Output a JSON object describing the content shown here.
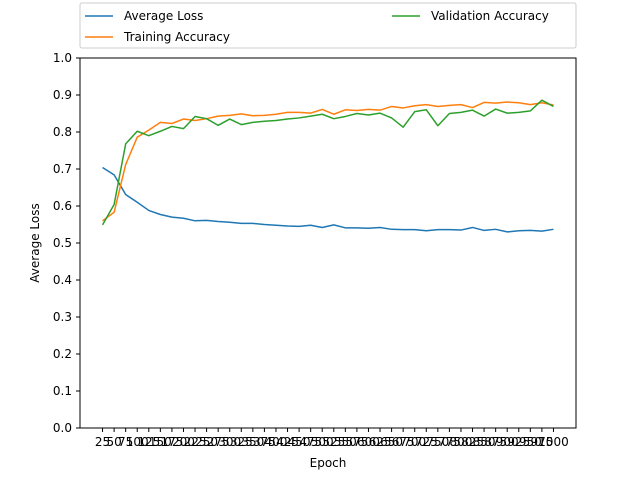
{
  "chart_data": {
    "type": "line",
    "title": "",
    "xlabel": "Epoch",
    "ylabel": "Average Loss",
    "ylim": [
      0.0,
      1.0
    ],
    "y_ticks": [
      "0.0",
      "0.1",
      "0.2",
      "0.3",
      "0.4",
      "0.5",
      "0.6",
      "0.7",
      "0.8",
      "0.9",
      "1.0"
    ],
    "x": [
      25,
      50,
      75,
      100,
      125,
      150,
      175,
      200,
      225,
      250,
      275,
      300,
      325,
      350,
      375,
      400,
      425,
      450,
      475,
      500,
      525,
      550,
      575,
      600,
      625,
      650,
      675,
      700,
      725,
      750,
      775,
      800,
      825,
      850,
      875,
      900,
      925,
      950,
      975,
      1000
    ],
    "grid": false,
    "legend_position": "top",
    "series": [
      {
        "name": "Average Loss",
        "color": "#1f77b4",
        "values": [
          0.704,
          0.684,
          0.631,
          0.61,
          0.588,
          0.577,
          0.57,
          0.567,
          0.56,
          0.561,
          0.558,
          0.556,
          0.553,
          0.553,
          0.55,
          0.548,
          0.546,
          0.545,
          0.548,
          0.542,
          0.549,
          0.541,
          0.541,
          0.54,
          0.542,
          0.537,
          0.536,
          0.536,
          0.533,
          0.536,
          0.536,
          0.535,
          0.542,
          0.534,
          0.537,
          0.53,
          0.533,
          0.534,
          0.532,
          0.537
        ]
      },
      {
        "name": "Training Accuracy",
        "color": "#ff7f0e",
        "values": [
          0.56,
          0.583,
          0.712,
          0.786,
          0.805,
          0.826,
          0.823,
          0.835,
          0.831,
          0.836,
          0.843,
          0.845,
          0.849,
          0.844,
          0.845,
          0.848,
          0.853,
          0.853,
          0.851,
          0.861,
          0.848,
          0.86,
          0.858,
          0.861,
          0.859,
          0.869,
          0.865,
          0.871,
          0.874,
          0.869,
          0.872,
          0.874,
          0.866,
          0.88,
          0.878,
          0.881,
          0.879,
          0.874,
          0.879,
          0.873
        ]
      },
      {
        "name": "Validation Accuracy",
        "color": "#2ca02c",
        "values": [
          0.549,
          0.604,
          0.768,
          0.802,
          0.79,
          0.802,
          0.815,
          0.809,
          0.842,
          0.836,
          0.818,
          0.835,
          0.82,
          0.826,
          0.829,
          0.831,
          0.835,
          0.838,
          0.843,
          0.848,
          0.836,
          0.842,
          0.85,
          0.846,
          0.851,
          0.838,
          0.813,
          0.855,
          0.86,
          0.817,
          0.85,
          0.853,
          0.859,
          0.843,
          0.862,
          0.851,
          0.853,
          0.857,
          0.886,
          0.869
        ]
      }
    ]
  }
}
